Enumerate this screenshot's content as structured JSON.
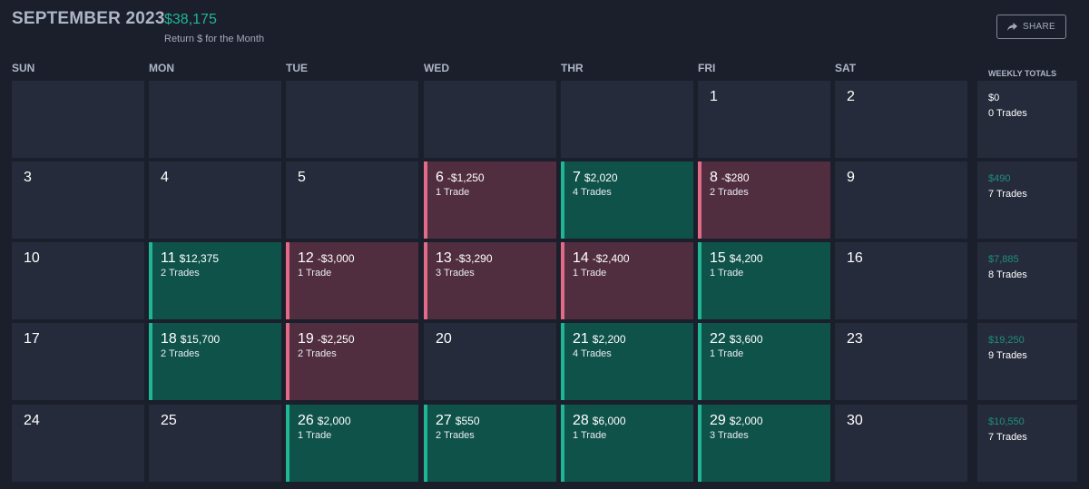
{
  "header": {
    "month_title": "SEPTEMBER 2023",
    "month_total": "$38,175",
    "month_subtitle": "Return $ for the Month",
    "share_label": "SHARE",
    "share_icon": "share-arrow-icon"
  },
  "weekday_labels": [
    "SUN",
    "MON",
    "TUE",
    "WED",
    "THR",
    "FRI",
    "SAT"
  ],
  "weekly_header": "WEEKLY TOTALS",
  "colors": {
    "background": "#1b1f2c",
    "cell": "#262b3c",
    "profit_cell": "#0f5249",
    "loss_cell": "#512e3f",
    "profit_accent": "#1fb595",
    "loss_accent": "#e36b88"
  },
  "weeks": [
    {
      "days": [
        {
          "day": "",
          "pnl": "",
          "trades": "",
          "status": "empty"
        },
        {
          "day": "",
          "pnl": "",
          "trades": "",
          "status": "empty"
        },
        {
          "day": "",
          "pnl": "",
          "trades": "",
          "status": "empty"
        },
        {
          "day": "",
          "pnl": "",
          "trades": "",
          "status": "empty"
        },
        {
          "day": "",
          "pnl": "",
          "trades": "",
          "status": "empty"
        },
        {
          "day": "1",
          "pnl": "",
          "trades": "",
          "status": "none"
        },
        {
          "day": "2",
          "pnl": "",
          "trades": "",
          "status": "none"
        }
      ],
      "total": {
        "amount": "$0",
        "trades": "0 Trades"
      }
    },
    {
      "days": [
        {
          "day": "3",
          "pnl": "",
          "trades": "",
          "status": "none"
        },
        {
          "day": "4",
          "pnl": "",
          "trades": "",
          "status": "none"
        },
        {
          "day": "5",
          "pnl": "",
          "trades": "",
          "status": "none"
        },
        {
          "day": "6",
          "pnl": "-$1,250",
          "trades": "1 Trade",
          "status": "loss"
        },
        {
          "day": "7",
          "pnl": "$2,020",
          "trades": "4 Trades",
          "status": "profit"
        },
        {
          "day": "8",
          "pnl": "-$280",
          "trades": "2 Trades",
          "status": "loss"
        },
        {
          "day": "9",
          "pnl": "",
          "trades": "",
          "status": "none"
        }
      ],
      "total": {
        "amount": "$490",
        "trades": "7 Trades"
      }
    },
    {
      "days": [
        {
          "day": "10",
          "pnl": "",
          "trades": "",
          "status": "none"
        },
        {
          "day": "11",
          "pnl": "$12,375",
          "trades": "2 Trades",
          "status": "profit"
        },
        {
          "day": "12",
          "pnl": "-$3,000",
          "trades": "1 Trade",
          "status": "loss"
        },
        {
          "day": "13",
          "pnl": "-$3,290",
          "trades": "3 Trades",
          "status": "loss"
        },
        {
          "day": "14",
          "pnl": "-$2,400",
          "trades": "1 Trade",
          "status": "loss"
        },
        {
          "day": "15",
          "pnl": "$4,200",
          "trades": "1 Trade",
          "status": "profit"
        },
        {
          "day": "16",
          "pnl": "",
          "trades": "",
          "status": "none"
        }
      ],
      "total": {
        "amount": "$7,885",
        "trades": "8 Trades"
      }
    },
    {
      "days": [
        {
          "day": "17",
          "pnl": "",
          "trades": "",
          "status": "none"
        },
        {
          "day": "18",
          "pnl": "$15,700",
          "trades": "2 Trades",
          "status": "profit"
        },
        {
          "day": "19",
          "pnl": "-$2,250",
          "trades": "2 Trades",
          "status": "loss"
        },
        {
          "day": "20",
          "pnl": "",
          "trades": "",
          "status": "none"
        },
        {
          "day": "21",
          "pnl": "$2,200",
          "trades": "4 Trades",
          "status": "profit"
        },
        {
          "day": "22",
          "pnl": "$3,600",
          "trades": "1 Trade",
          "status": "profit"
        },
        {
          "day": "23",
          "pnl": "",
          "trades": "",
          "status": "none"
        }
      ],
      "total": {
        "amount": "$19,250",
        "trades": "9 Trades"
      }
    },
    {
      "days": [
        {
          "day": "24",
          "pnl": "",
          "trades": "",
          "status": "none"
        },
        {
          "day": "25",
          "pnl": "",
          "trades": "",
          "status": "none"
        },
        {
          "day": "26",
          "pnl": "$2,000",
          "trades": "1 Trade",
          "status": "profit"
        },
        {
          "day": "27",
          "pnl": "$550",
          "trades": "2 Trades",
          "status": "profit"
        },
        {
          "day": "28",
          "pnl": "$6,000",
          "trades": "1 Trade",
          "status": "profit"
        },
        {
          "day": "29",
          "pnl": "$2,000",
          "trades": "3 Trades",
          "status": "profit"
        },
        {
          "day": "30",
          "pnl": "",
          "trades": "",
          "status": "none"
        }
      ],
      "total": {
        "amount": "$10,550",
        "trades": "7 Trades"
      }
    }
  ]
}
